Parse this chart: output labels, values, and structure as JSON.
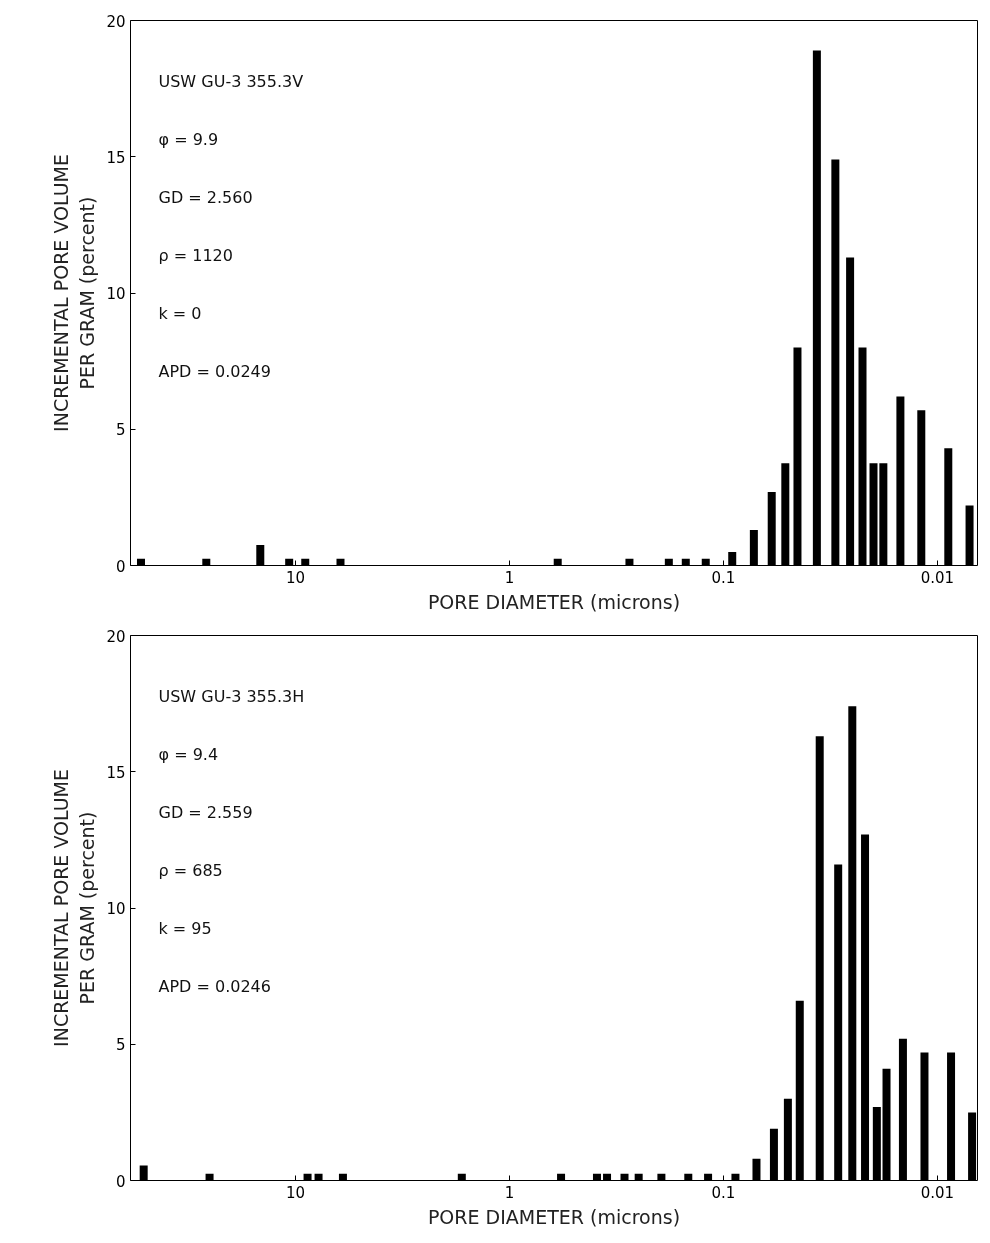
{
  "chart_data": [
    {
      "type": "bar",
      "xlabel": "PORE DIAMETER (microns)",
      "ylabel": "INCREMENTAL PORE VOLUME\nPER GRAM (percent)",
      "log": "x",
      "xlim": [
        59,
        0.0065
      ],
      "xticks": [
        10,
        1,
        0.1,
        0.01
      ],
      "ylim": [
        0,
        20
      ],
      "yticks": [
        0,
        5,
        10,
        15,
        20
      ],
      "grid": false,
      "color": "#000000",
      "annotations": [
        "USW GU-3 355.3V",
        "φ = 9.9",
        "GD = 2.560",
        "ρ = 1120",
        "k = 0",
        "APD = 0.0249"
      ],
      "x": [
        52.7,
        26.1,
        14.6,
        10.7,
        9.0,
        6.16,
        0.595,
        0.275,
        0.18,
        0.15,
        0.121,
        0.091,
        0.0721,
        0.0595,
        0.0514,
        0.0451,
        0.0366,
        0.03,
        0.0256,
        0.0224,
        0.0199,
        0.0179,
        0.0149,
        0.0119,
        0.0089,
        0.00708
      ],
      "values": [
        0.25,
        0.25,
        0.75,
        0.25,
        0.25,
        0.25,
        0.25,
        0.25,
        0.25,
        0.25,
        0.25,
        0.5,
        1.3,
        2.7,
        3.75,
        8.0,
        18.9,
        14.9,
        11.3,
        8.0,
        3.75,
        3.75,
        6.2,
        5.7,
        4.3,
        2.2
      ]
    },
    {
      "type": "bar",
      "xlabel": "PORE DIAMETER (microns)",
      "ylabel": "INCREMENTAL PORE VOLUME\nPER GRAM (percent)",
      "log": "x",
      "xlim": [
        59,
        0.0065
      ],
      "xticks": [
        10,
        1,
        0.1,
        0.01
      ],
      "ylim": [
        0,
        20
      ],
      "yticks": [
        0,
        5,
        10,
        15,
        20
      ],
      "grid": false,
      "color": "#000000",
      "annotations": [
        "USW GU-3 355.3H",
        "φ = 9.4",
        "GD = 2.559",
        "ρ = 685",
        "k = 95",
        "APD = 0.0246"
      ],
      "x": [
        51.2,
        25.2,
        8.78,
        7.8,
        6.0,
        1.67,
        0.574,
        0.39,
        0.35,
        0.29,
        0.249,
        0.195,
        0.146,
        0.118,
        0.0879,
        0.0701,
        0.0581,
        0.05,
        0.044,
        0.0355,
        0.0291,
        0.025,
        0.0218,
        0.0192,
        0.0173,
        0.0145,
        0.0115,
        0.00864,
        0.00689
      ],
      "values": [
        0.55,
        0.25,
        0.25,
        0.25,
        0.25,
        0.25,
        0.25,
        0.25,
        0.25,
        0.25,
        0.25,
        0.25,
        0.25,
        0.25,
        0.25,
        0.8,
        1.9,
        3.0,
        6.6,
        16.3,
        11.6,
        17.4,
        12.7,
        2.7,
        4.1,
        5.2,
        4.7,
        4.7,
        2.5
      ]
    }
  ]
}
